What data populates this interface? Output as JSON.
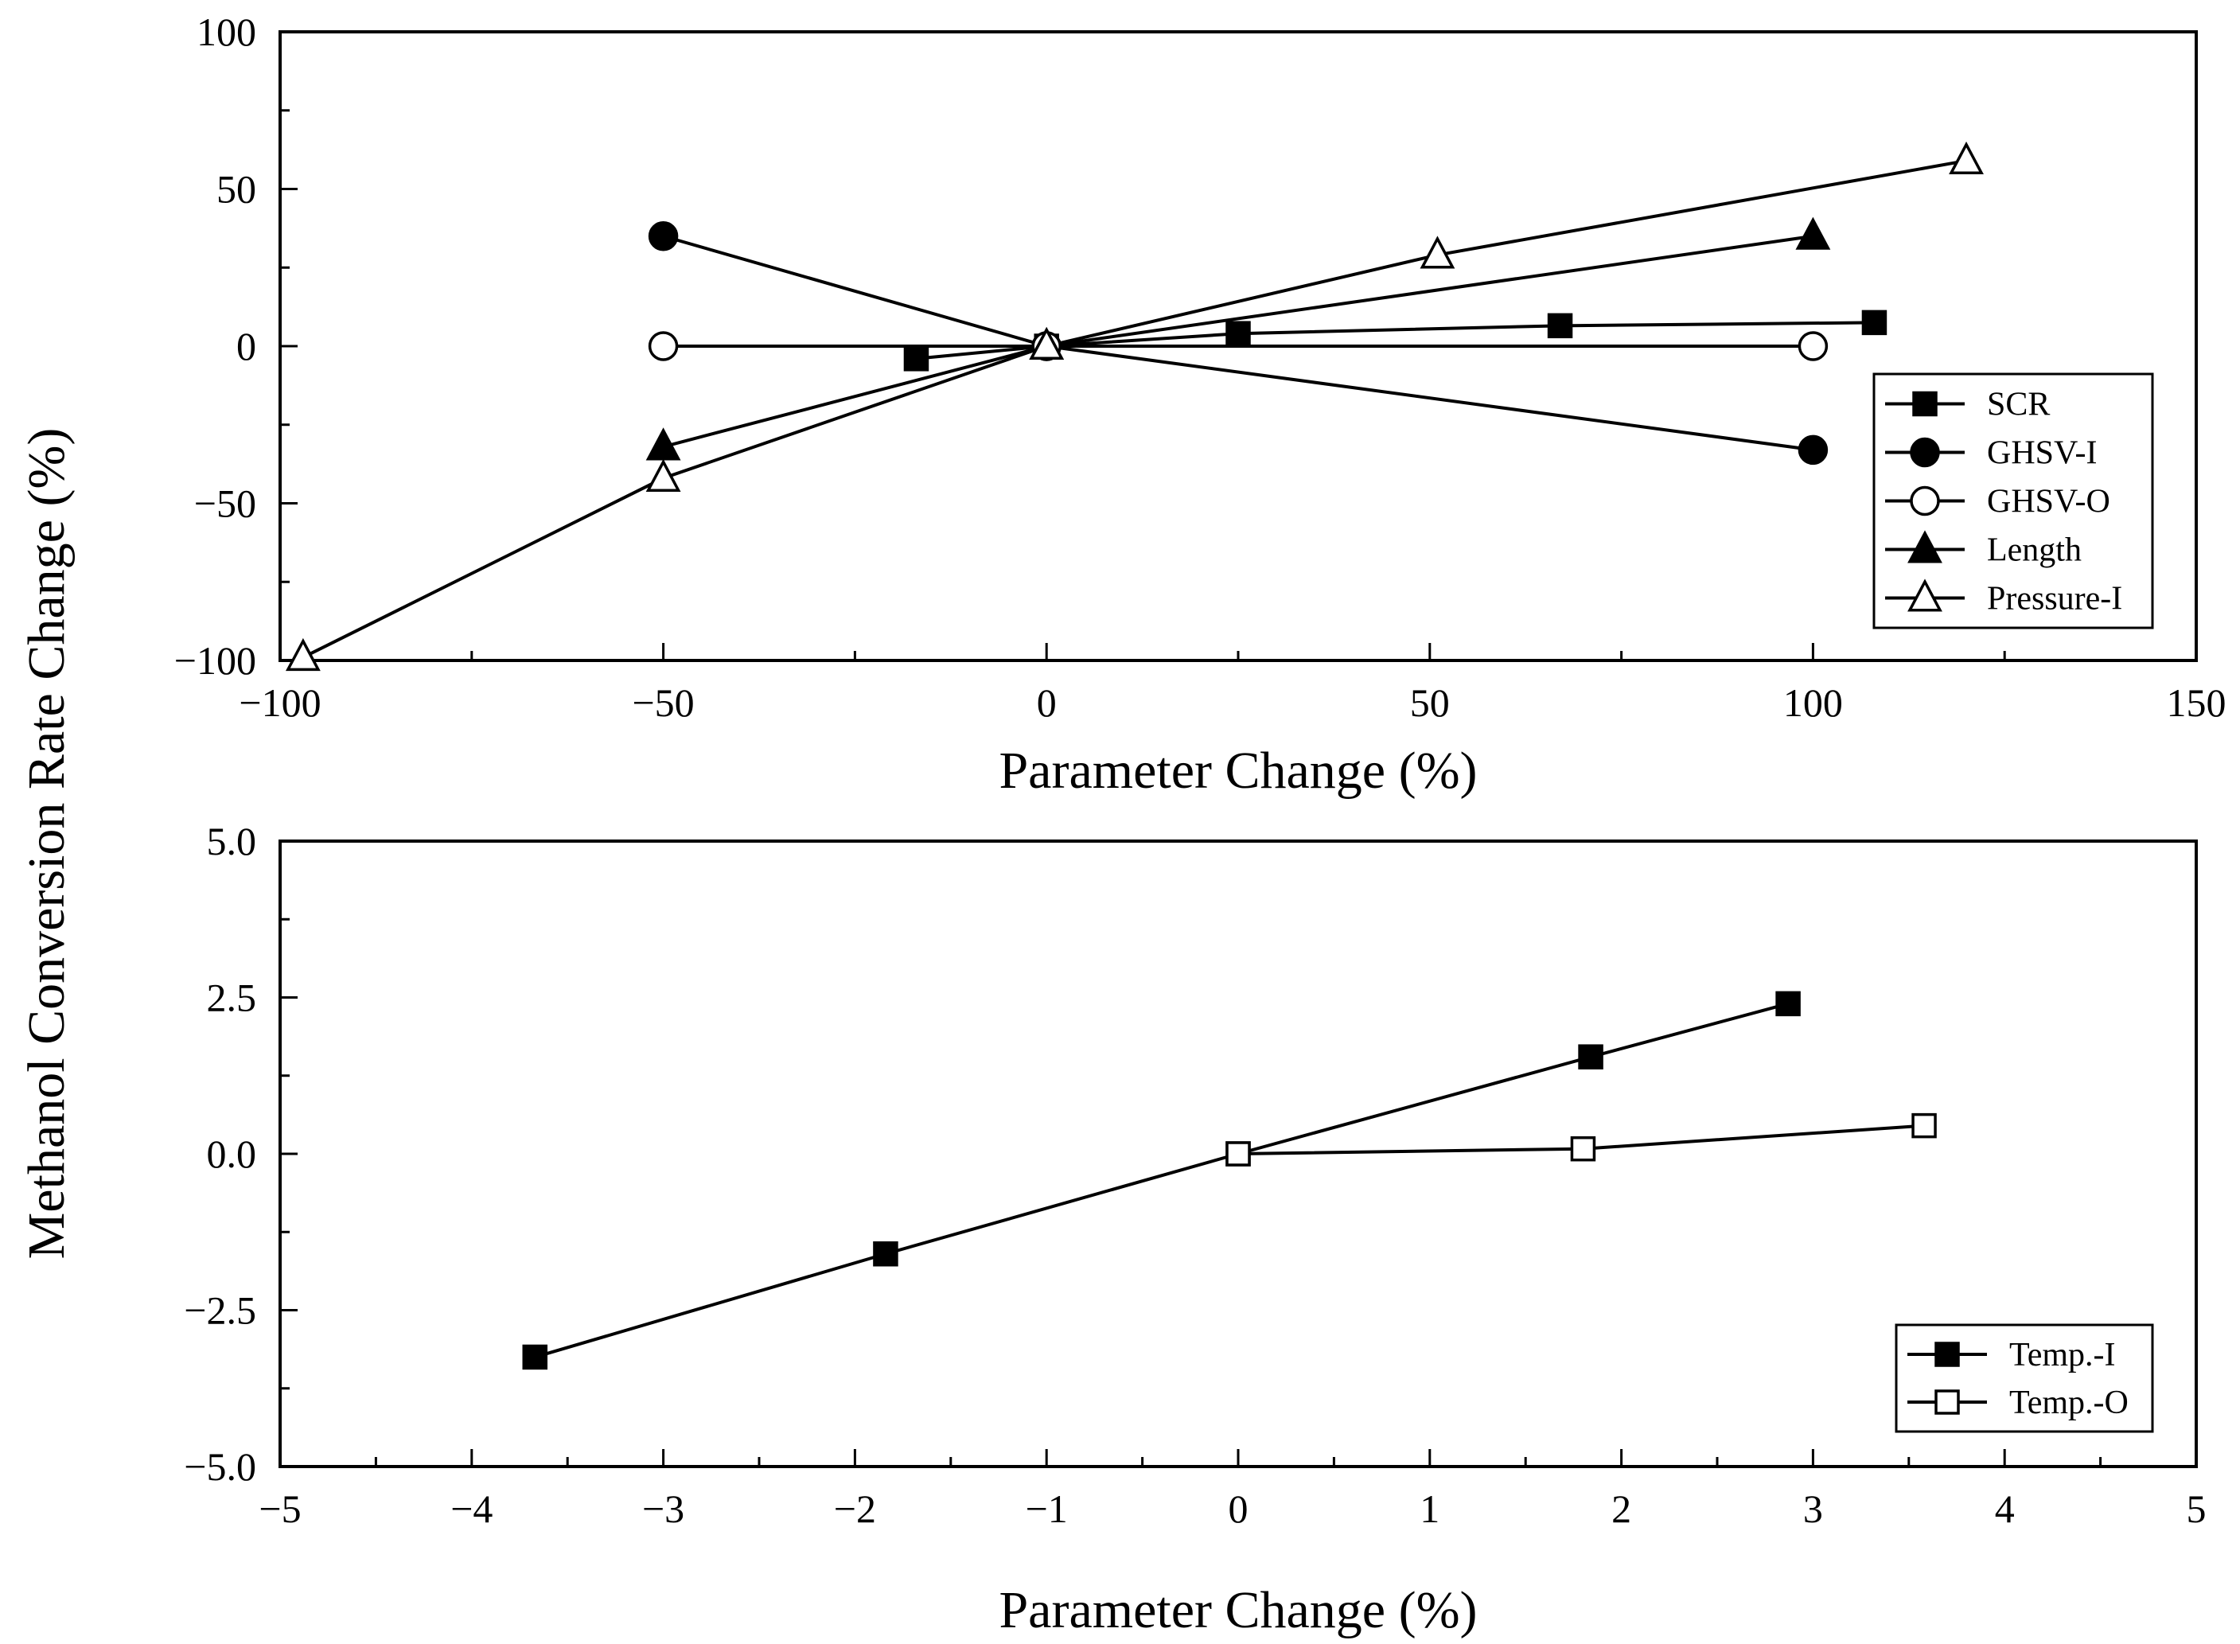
{
  "ylabel": "Methanol Conversion Rate Change (%)",
  "chart_data": [
    {
      "type": "line",
      "xlabel": "Parameter Change (%)",
      "ylabel": "Methanol Conversion Rate Change (%)",
      "xlim": [
        -100,
        150
      ],
      "ylim": [
        -100,
        100
      ],
      "xticks": [
        -100,
        -50,
        0,
        50,
        100,
        150
      ],
      "yticks": [
        -100,
        -50,
        0,
        50,
        100
      ],
      "xtick_labels": [
        "−100",
        "−50",
        "0",
        "50",
        "100",
        "150"
      ],
      "ytick_labels": [
        "−100",
        "−50",
        "0",
        "50",
        "100"
      ],
      "legend_position": "right",
      "series": [
        {
          "name": "SCR",
          "marker": "square-filled",
          "x": [
            -17,
            0,
            25,
            67,
            108
          ],
          "y": [
            -4,
            0,
            4,
            6.5,
            7.5
          ]
        },
        {
          "name": "GHSV-I",
          "marker": "circle-filled",
          "x": [
            -50,
            0,
            100
          ],
          "y": [
            35,
            0,
            -33
          ]
        },
        {
          "name": "GHSV-O",
          "marker": "circle-open",
          "x": [
            -50,
            0,
            100
          ],
          "y": [
            0,
            0,
            0
          ]
        },
        {
          "name": "Length",
          "marker": "triangle-filled",
          "x": [
            -50,
            0,
            100
          ],
          "y": [
            -32,
            0,
            35
          ]
        },
        {
          "name": "Pressure-I",
          "marker": "triangle-open",
          "x": [
            -97,
            -50,
            0,
            51,
            120
          ],
          "y": [
            -99,
            -42,
            0,
            29,
            59
          ]
        }
      ]
    },
    {
      "type": "line",
      "xlabel": "Parameter Change (%)",
      "ylabel": "Methanol Conversion Rate Change (%)",
      "xlim": [
        -5,
        5
      ],
      "ylim": [
        -5.0,
        5.0
      ],
      "xticks": [
        -5,
        -4,
        -3,
        -2,
        -1,
        0,
        1,
        2,
        3,
        4,
        5
      ],
      "yticks": [
        -5.0,
        -2.5,
        0.0,
        2.5,
        5.0
      ],
      "xtick_labels": [
        "−5",
        "−4",
        "−3",
        "−2",
        "−1",
        "0",
        "1",
        "2",
        "3",
        "4",
        "5"
      ],
      "ytick_labels": [
        "−5.0",
        "−2.5",
        "0.0",
        "2.5",
        "5.0"
      ],
      "legend_position": "bottom-right",
      "series": [
        {
          "name": "Temp.-I",
          "marker": "square-filled",
          "x": [
            -3.67,
            -1.84,
            0,
            1.84,
            2.87
          ],
          "y": [
            -3.25,
            -1.6,
            0,
            1.55,
            2.4
          ]
        },
        {
          "name": "Temp.-O",
          "marker": "square-open",
          "x": [
            0,
            1.8,
            3.58
          ],
          "y": [
            0,
            0.08,
            0.45
          ]
        }
      ]
    }
  ]
}
